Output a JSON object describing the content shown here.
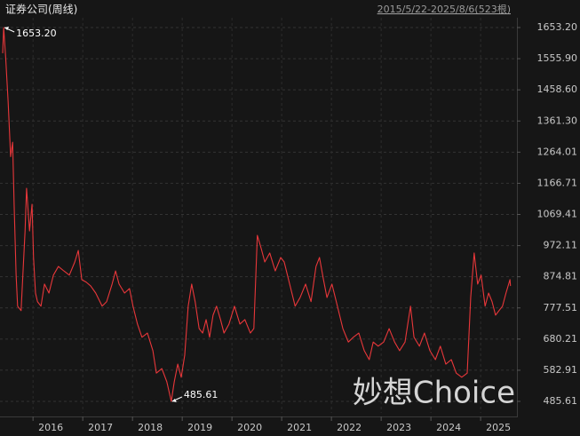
{
  "chart_data": {
    "type": "line",
    "title": "证券公司(周线)",
    "subtitle": "2015/5/22-2025/8/6(523根)",
    "watermark": "妙想Choice",
    "color": "#e8373a",
    "grid": true,
    "x": [
      2015.39,
      2015.41,
      2015.45,
      2015.5,
      2015.55,
      2015.59,
      2015.62,
      2015.66,
      2015.69,
      2015.76,
      2015.84,
      2015.87,
      2015.93,
      2015.98,
      2016.01,
      2016.05,
      2016.09,
      2016.16,
      2016.23,
      2016.32,
      2016.41,
      2016.51,
      2016.62,
      2016.73,
      2016.84,
      2016.91,
      2016.98,
      2017.07,
      2017.16,
      2017.26,
      2017.39,
      2017.48,
      2017.59,
      2017.66,
      2017.73,
      2017.84,
      2017.94,
      2018.01,
      2018.1,
      2018.19,
      2018.3,
      2018.41,
      2018.48,
      2018.59,
      2018.69,
      2018.78,
      2018.84,
      2018.91,
      2018.98,
      2019.05,
      2019.12,
      2019.19,
      2019.26,
      2019.34,
      2019.41,
      2019.48,
      2019.55,
      2019.62,
      2019.69,
      2019.77,
      2019.84,
      2019.94,
      2020.05,
      2020.16,
      2020.26,
      2020.37,
      2020.44,
      2020.51,
      2020.59,
      2020.66,
      2020.76,
      2020.87,
      2020.98,
      2021.05,
      2021.16,
      2021.27,
      2021.37,
      2021.48,
      2021.59,
      2021.69,
      2021.76,
      2021.84,
      2021.91,
      2022.01,
      2022.12,
      2022.23,
      2022.34,
      2022.44,
      2022.55,
      2022.66,
      2022.76,
      2022.84,
      2022.94,
      2023.05,
      2023.16,
      2023.27,
      2023.37,
      2023.48,
      2023.59,
      2023.66,
      2023.77,
      2023.87,
      2023.98,
      2024.09,
      2024.19,
      2024.3,
      2024.41,
      2024.51,
      2024.62,
      2024.73,
      2024.8,
      2024.87,
      2024.94,
      2025.01,
      2025.09,
      2025.16,
      2025.23,
      2025.3,
      2025.37,
      2025.44,
      2025.51,
      2025.59,
      2025.6
    ],
    "values": [
      1573,
      1653.2,
      1560,
      1420,
      1250,
      1295,
      1101,
      880,
      783,
      769,
      1018,
      1151,
      1018,
      1101,
      935,
      824,
      797,
      783,
      852,
      824,
      880,
      907,
      893,
      880,
      921,
      957,
      866,
      858,
      846,
      824,
      783,
      797,
      852,
      893,
      852,
      824,
      838,
      783,
      727,
      686,
      699,
      644,
      574,
      588,
      547,
      485.61,
      547,
      602,
      561,
      630,
      783,
      852,
      797,
      713,
      699,
      741,
      686,
      755,
      783,
      741,
      699,
      727,
      783,
      727,
      741,
      699,
      713,
      1004,
      962,
      921,
      949,
      893,
      935,
      921,
      852,
      783,
      810,
      852,
      797,
      907,
      935,
      866,
      810,
      852,
      783,
      713,
      671,
      686,
      699,
      644,
      616,
      671,
      658,
      671,
      713,
      671,
      644,
      671,
      783,
      686,
      658,
      699,
      644,
      616,
      658,
      602,
      616,
      574,
      561,
      574,
      810,
      949,
      852,
      880,
      783,
      824,
      797,
      755,
      769,
      783,
      824,
      866,
      846
    ],
    "xlim": [
      2015.336,
      2025.73
    ],
    "xticks": [
      2016,
      2017,
      2018,
      2019,
      2020,
      2021,
      2022,
      2023,
      2024,
      2025
    ],
    "ylim": [
      449.6,
      1683.7
    ],
    "yticks": [
      {
        "value": 1653.2,
        "label": "1653.20"
      },
      {
        "value": 1555.9,
        "label": "1555.90"
      },
      {
        "value": 1458.6,
        "label": "1458.60"
      },
      {
        "value": 1361.3,
        "label": "1361.30"
      },
      {
        "value": 1264.01,
        "label": "1264.01"
      },
      {
        "value": 1166.71,
        "label": "1166.71"
      },
      {
        "value": 1069.41,
        "label": "1069.41"
      },
      {
        "value": 972.11,
        "label": "972.11"
      },
      {
        "value": 874.81,
        "label": "874.81"
      },
      {
        "value": 777.51,
        "label": "777.51"
      },
      {
        "value": 680.21,
        "label": "680.21"
      },
      {
        "value": 582.91,
        "label": "582.91"
      },
      {
        "value": 485.61,
        "label": "485.61"
      }
    ],
    "annotations": [
      {
        "text": "1653.20",
        "x": 2015.41,
        "y": 1653.2
      },
      {
        "text": "485.61",
        "x": 2018.78,
        "y": 485.61
      }
    ]
  }
}
